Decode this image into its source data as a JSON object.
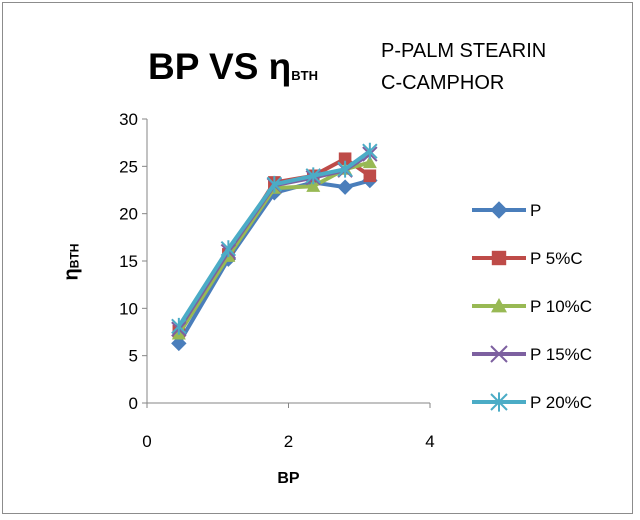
{
  "chart_data": {
    "type": "line",
    "title_main": "BP VS η",
    "title_sub": "BTH",
    "annotations": [
      "P-PALM STEARIN",
      "C-CAMPHOR"
    ],
    "xlabel": "BP",
    "ylabel_main": "η",
    "ylabel_sub": "BTH",
    "xlim": [
      0,
      4
    ],
    "ylim": [
      0,
      30
    ],
    "xticks": [
      0,
      2,
      4
    ],
    "yticks": [
      0,
      5,
      10,
      15,
      20,
      25,
      30
    ],
    "grid": false,
    "legend_position": "right",
    "series": [
      {
        "name": "P",
        "marker": "diamond",
        "color": "#4a7ebb",
        "x": [
          0.45,
          1.15,
          1.8,
          2.35,
          2.8,
          3.15
        ],
        "y": [
          6.3,
          15.2,
          22.2,
          23.3,
          22.8,
          23.5
        ]
      },
      {
        "name": "P 5%C",
        "marker": "square",
        "color": "#be4b48",
        "x": [
          0.45,
          1.15,
          1.8,
          2.35,
          2.8,
          3.15
        ],
        "y": [
          7.6,
          15.7,
          23.3,
          24.0,
          25.8,
          24.0
        ]
      },
      {
        "name": "P 10%C",
        "marker": "triangle",
        "color": "#98b954",
        "x": [
          0.45,
          1.15,
          1.8,
          2.35,
          2.8,
          3.15
        ],
        "y": [
          7.3,
          15.5,
          22.7,
          22.9,
          24.7,
          25.4
        ]
      },
      {
        "name": "P 15%C",
        "marker": "x",
        "color": "#7d60a0",
        "x": [
          0.45,
          1.15,
          1.8,
          2.35,
          2.8,
          3.15
        ],
        "y": [
          7.8,
          16.0,
          23.0,
          23.8,
          24.6,
          26.3
        ]
      },
      {
        "name": "P 20%C",
        "marker": "star",
        "color": "#4bacc6",
        "x": [
          0.45,
          1.15,
          1.8,
          2.35,
          2.8,
          3.15
        ],
        "y": [
          8.1,
          16.3,
          23.1,
          24.0,
          24.7,
          26.6
        ]
      }
    ]
  }
}
